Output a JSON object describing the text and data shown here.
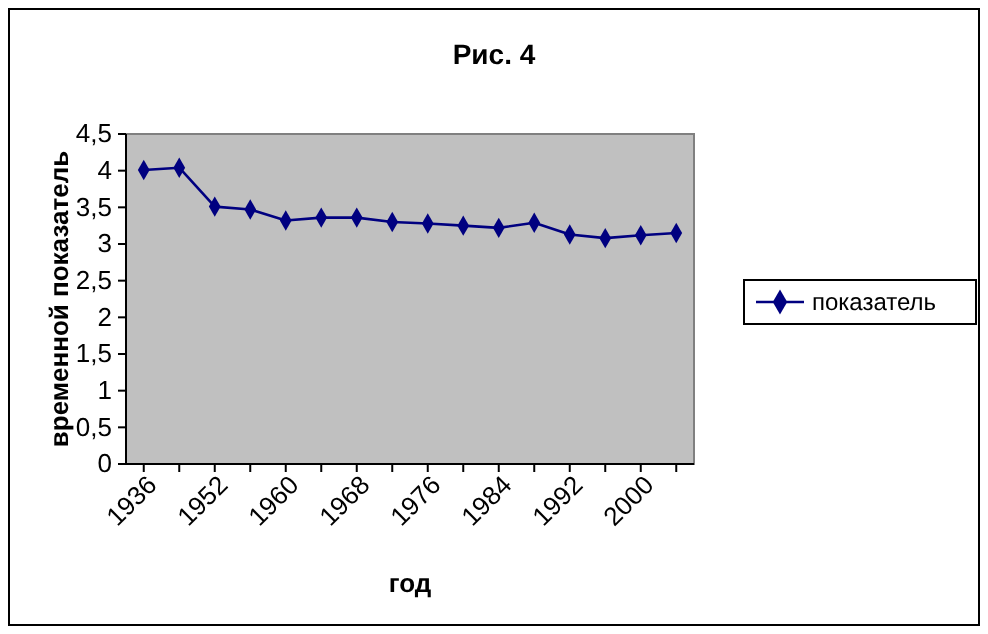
{
  "chart_data": {
    "type": "line",
    "title": "Рис. 4",
    "xlabel": "год",
    "ylabel": "временной показатель",
    "categories": [
      "1936",
      null,
      "1952",
      null,
      "1960",
      null,
      "1968",
      null,
      "1976",
      null,
      "1984",
      null,
      "1992",
      null,
      "2000",
      null
    ],
    "series": [
      {
        "name": "показатель",
        "color": "#000080",
        "values": [
          4.01,
          4.04,
          3.51,
          3.47,
          3.32,
          3.36,
          3.36,
          3.3,
          3.28,
          3.25,
          3.22,
          3.29,
          3.13,
          3.08,
          3.12,
          3.15
        ]
      }
    ],
    "ylim": [
      0,
      4.5
    ],
    "yticks": [
      0,
      {
        "value": 0.5,
        "label": "0,5"
      },
      1,
      {
        "value": 1.5,
        "label": "1,5"
      },
      2,
      {
        "value": 2.5,
        "label": "2,5"
      },
      3,
      {
        "value": 3.5,
        "label": "3,5"
      },
      4,
      {
        "value": 4.5,
        "label": "4,5"
      }
    ],
    "grid": false,
    "legend": "right",
    "marker": "diamond",
    "line_style": "solid"
  }
}
